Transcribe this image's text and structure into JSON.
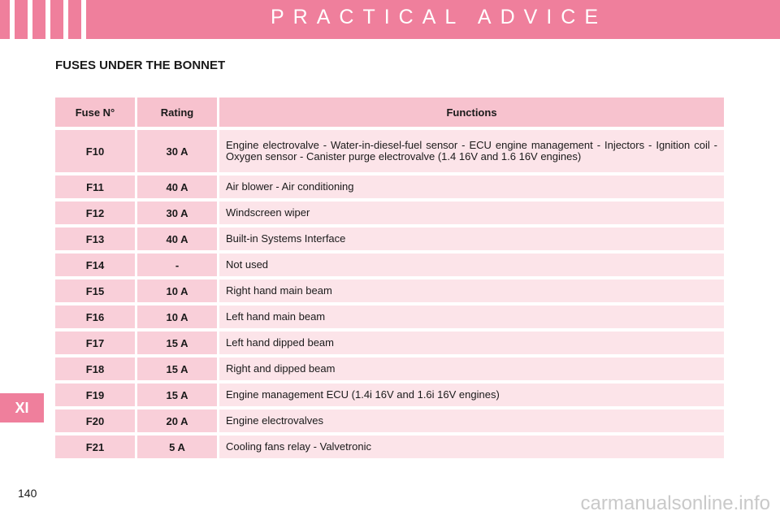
{
  "header": {
    "title": "PRACTICAL ADVICE"
  },
  "section": {
    "title": "FUSES UNDER THE BONNET"
  },
  "table": {
    "columns": [
      "Fuse N°",
      "Rating",
      "Functions"
    ],
    "rows": [
      {
        "fuse": "F10",
        "rating": "30 A",
        "function": "Engine electrovalve - Water-in-diesel-fuel sensor - ECU engine management - Injectors - Ignition coil - Oxygen sensor - Canister purge electrovalve (1.4 16V and 1.6 16V engines)"
      },
      {
        "fuse": "F11",
        "rating": "40 A",
        "function": "Air blower - Air conditioning"
      },
      {
        "fuse": "F12",
        "rating": "30 A",
        "function": "Windscreen wiper"
      },
      {
        "fuse": "F13",
        "rating": "40 A",
        "function": "Built-in Systems Interface"
      },
      {
        "fuse": "F14",
        "rating": "-",
        "function": "Not used"
      },
      {
        "fuse": "F15",
        "rating": "10 A",
        "function": "Right hand main beam"
      },
      {
        "fuse": "F16",
        "rating": "10 A",
        "function": "Left hand main beam"
      },
      {
        "fuse": "F17",
        "rating": "15 A",
        "function": "Left hand dipped beam"
      },
      {
        "fuse": "F18",
        "rating": "15 A",
        "function": "Right and dipped beam"
      },
      {
        "fuse": "F19",
        "rating": "15 A",
        "function": "Engine management ECU (1.4i 16V and 1.6i 16V engines)"
      },
      {
        "fuse": "F20",
        "rating": "20 A",
        "function": "Engine electrovalves"
      },
      {
        "fuse": "F21",
        "rating": "5 A",
        "function": "Cooling fans relay - Valvetronic"
      }
    ]
  },
  "side_tab": {
    "label": "XI"
  },
  "page": {
    "number": "140"
  },
  "watermark": {
    "text": "carmanualsonline.info"
  },
  "colors": {
    "accent": "#ef7f9c",
    "header_cell": "#f7c2ce",
    "body_cell": "#fce4e9"
  }
}
